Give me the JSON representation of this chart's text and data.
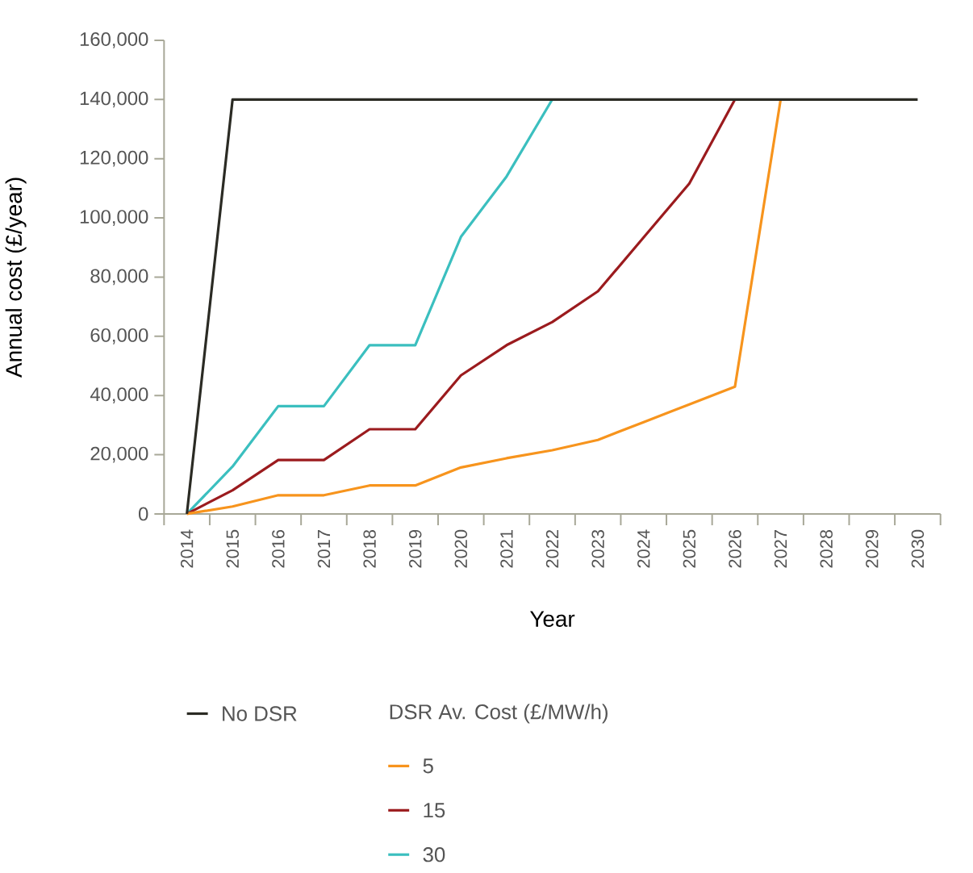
{
  "chart_data": {
    "type": "line",
    "xlabel": "Year",
    "ylabel": "Annual cost (£/year)",
    "legend_title": "DSR Av. Cost (£/MW/h)",
    "legend": "bottom",
    "categories": [
      "2014",
      "2015",
      "2016",
      "2017",
      "2018",
      "2019",
      "2020",
      "2021",
      "2022",
      "2023",
      "2024",
      "2025",
      "2026",
      "2027",
      "2028",
      "2029",
      "2030"
    ],
    "ylim": [
      0,
      160000
    ],
    "yticks": [
      0,
      {
        "value": 20000,
        "label": "20,000"
      },
      {
        "value": 40000,
        "label": "40,000"
      },
      {
        "value": 60000,
        "label": "60,000"
      },
      {
        "value": 80000,
        "label": "80,000"
      },
      {
        "value": 100000,
        "label": "100,000"
      },
      {
        "value": 120000,
        "label": "120,000"
      },
      {
        "value": 140000,
        "label": "140,000"
      },
      {
        "value": 160000,
        "label": "160,000"
      }
    ],
    "series": [
      {
        "name": "No DSR",
        "color": "#2b2b24",
        "values": [
          0,
          140000,
          140000,
          140000,
          140000,
          140000,
          140000,
          140000,
          140000,
          140000,
          140000,
          140000,
          140000,
          140000,
          140000,
          140000,
          140000
        ]
      },
      {
        "name": "5",
        "color": "#f7941d",
        "values": [
          0,
          2500,
          6300,
          6300,
          9600,
          9600,
          15700,
          18800,
          21500,
          25000,
          31000,
          37000,
          43000,
          140000,
          null,
          null,
          null
        ]
      },
      {
        "name": "15",
        "color": "#9b1b1e",
        "values": [
          0,
          8000,
          18200,
          18200,
          28600,
          28600,
          46800,
          57000,
          64800,
          75200,
          93400,
          111600,
          140000,
          null,
          null,
          null,
          null
        ]
      },
      {
        "name": "30",
        "color": "#3bbfbf",
        "values": [
          0,
          16000,
          36400,
          36400,
          57000,
          57000,
          93600,
          114000,
          140000,
          null,
          null,
          null,
          null,
          null,
          null,
          null,
          null
        ]
      }
    ]
  }
}
